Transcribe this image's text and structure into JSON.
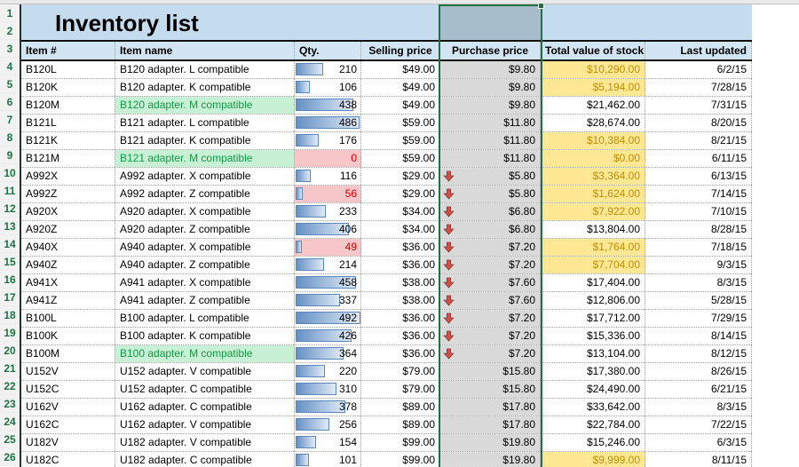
{
  "sheet": {
    "title": "Inventory list",
    "selected_column": "Purchase price",
    "qty_bar_max": 500,
    "columns": [
      {
        "key": "item",
        "label": "Item #",
        "align": "left"
      },
      {
        "key": "name",
        "label": "Item name",
        "align": "left"
      },
      {
        "key": "qty",
        "label": "Qty.",
        "align": "left"
      },
      {
        "key": "sell",
        "label": "Selling price",
        "align": "center"
      },
      {
        "key": "buy",
        "label": "Purchase price",
        "align": "center"
      },
      {
        "key": "total",
        "label": "Total value of stock",
        "align": "center"
      },
      {
        "key": "updated",
        "label": "Last updated",
        "align": "right"
      }
    ],
    "row_numbers": [
      1,
      2,
      3,
      4,
      5,
      6,
      7,
      8,
      9,
      10,
      11,
      12,
      13,
      14,
      15,
      16,
      17,
      18,
      19,
      20,
      21,
      22,
      23,
      24,
      25,
      26
    ],
    "rows": [
      {
        "item": "B120L",
        "name": "B120 adapter. L compatible",
        "qty": 210,
        "sell": "$49.00",
        "buy": "$9.80",
        "buy_arrow": false,
        "total": "$10,290.00",
        "total_highlight": true,
        "updated": "6/2/15",
        "name_good": false,
        "qty_low": false
      },
      {
        "item": "B120K",
        "name": "B120 adapter. K compatible",
        "qty": 106,
        "sell": "$49.00",
        "buy": "$9.80",
        "buy_arrow": false,
        "total": "$5,194.00",
        "total_highlight": true,
        "updated": "7/28/15",
        "name_good": false,
        "qty_low": false
      },
      {
        "item": "B120M",
        "name": "B120 adapter. M compatible",
        "qty": 438,
        "sell": "$49.00",
        "buy": "$9.80",
        "buy_arrow": false,
        "total": "$21,462.00",
        "total_highlight": false,
        "updated": "7/31/15",
        "name_good": true,
        "qty_low": false
      },
      {
        "item": "B121L",
        "name": "B121 adapter. L compatible",
        "qty": 486,
        "sell": "$59.00",
        "buy": "$11.80",
        "buy_arrow": false,
        "total": "$28,674.00",
        "total_highlight": false,
        "updated": "8/20/15",
        "name_good": false,
        "qty_low": false
      },
      {
        "item": "B121K",
        "name": "B121 adapter. K compatible",
        "qty": 176,
        "sell": "$59.00",
        "buy": "$11.80",
        "buy_arrow": false,
        "total": "$10,384.00",
        "total_highlight": true,
        "updated": "8/21/15",
        "name_good": false,
        "qty_low": false
      },
      {
        "item": "B121M",
        "name": "B121 adapter. M compatible",
        "qty": 0,
        "sell": "$59.00",
        "buy": "$11.80",
        "buy_arrow": false,
        "total": "$0.00",
        "total_highlight": true,
        "updated": "6/11/15",
        "name_good": true,
        "qty_low": true
      },
      {
        "item": "A992X",
        "name": "A992 adapter. X compatible",
        "qty": 116,
        "sell": "$29.00",
        "buy": "$5.80",
        "buy_arrow": true,
        "total": "$3,364.00",
        "total_highlight": true,
        "updated": "6/13/15",
        "name_good": false,
        "qty_low": false
      },
      {
        "item": "A992Z",
        "name": "A992 adapter. Z compatible",
        "qty": 56,
        "sell": "$29.00",
        "buy": "$5.80",
        "buy_arrow": true,
        "total": "$1,624.00",
        "total_highlight": true,
        "updated": "7/14/15",
        "name_good": false,
        "qty_low": true
      },
      {
        "item": "A920X",
        "name": "A920 adapter. X compatible",
        "qty": 233,
        "sell": "$34.00",
        "buy": "$6.80",
        "buy_arrow": true,
        "total": "$7,922.00",
        "total_highlight": true,
        "updated": "7/10/15",
        "name_good": false,
        "qty_low": false
      },
      {
        "item": "A920Z",
        "name": "A920 adapter. Z compatible",
        "qty": 406,
        "sell": "$34.00",
        "buy": "$6.80",
        "buy_arrow": true,
        "total": "$13,804.00",
        "total_highlight": false,
        "updated": "8/28/15",
        "name_good": false,
        "qty_low": false
      },
      {
        "item": "A940X",
        "name": "A940 adapter. X compatible",
        "qty": 49,
        "sell": "$36.00",
        "buy": "$7.20",
        "buy_arrow": true,
        "total": "$1,764.00",
        "total_highlight": true,
        "updated": "7/18/15",
        "name_good": false,
        "qty_low": true
      },
      {
        "item": "A940Z",
        "name": "A940 adapter. Z compatible",
        "qty": 214,
        "sell": "$36.00",
        "buy": "$7.20",
        "buy_arrow": true,
        "total": "$7,704.00",
        "total_highlight": true,
        "updated": "9/3/15",
        "name_good": false,
        "qty_low": false
      },
      {
        "item": "A941X",
        "name": "A941 adapter. X compatible",
        "qty": 458,
        "sell": "$38.00",
        "buy": "$7.60",
        "buy_arrow": true,
        "total": "$17,404.00",
        "total_highlight": false,
        "updated": "8/3/15",
        "name_good": false,
        "qty_low": false
      },
      {
        "item": "A941Z",
        "name": "A941 adapter. Z compatible",
        "qty": 337,
        "sell": "$38.00",
        "buy": "$7.60",
        "buy_arrow": true,
        "total": "$12,806.00",
        "total_highlight": false,
        "updated": "5/28/15",
        "name_good": false,
        "qty_low": false
      },
      {
        "item": "B100L",
        "name": "B100 adapter. L compatible",
        "qty": 492,
        "sell": "$36.00",
        "buy": "$7.20",
        "buy_arrow": true,
        "total": "$17,712.00",
        "total_highlight": false,
        "updated": "7/29/15",
        "name_good": false,
        "qty_low": false
      },
      {
        "item": "B100K",
        "name": "B100 adapter. K compatible",
        "qty": 426,
        "sell": "$36.00",
        "buy": "$7.20",
        "buy_arrow": true,
        "total": "$15,336.00",
        "total_highlight": false,
        "updated": "8/14/15",
        "name_good": false,
        "qty_low": false
      },
      {
        "item": "B100M",
        "name": "B100 adapter. M compatible",
        "qty": 364,
        "sell": "$36.00",
        "buy": "$7.20",
        "buy_arrow": true,
        "total": "$13,104.00",
        "total_highlight": false,
        "updated": "8/12/15",
        "name_good": true,
        "qty_low": false
      },
      {
        "item": "U152V",
        "name": "U152 adapter. V compatible",
        "qty": 220,
        "sell": "$79.00",
        "buy": "$15.80",
        "buy_arrow": false,
        "total": "$17,380.00",
        "total_highlight": false,
        "updated": "8/26/15",
        "name_good": false,
        "qty_low": false
      },
      {
        "item": "U152C",
        "name": "U152 adapter. C compatible",
        "qty": 310,
        "sell": "$79.00",
        "buy": "$15.80",
        "buy_arrow": false,
        "total": "$24,490.00",
        "total_highlight": false,
        "updated": "6/21/15",
        "name_good": false,
        "qty_low": false
      },
      {
        "item": "U162V",
        "name": "U162 adapter. C compatible",
        "qty": 378,
        "sell": "$89.00",
        "buy": "$17.80",
        "buy_arrow": false,
        "total": "$33,642.00",
        "total_highlight": false,
        "updated": "8/3/15",
        "name_good": false,
        "qty_low": false
      },
      {
        "item": "U162C",
        "name": "U162 adapter. V compatible",
        "qty": 256,
        "sell": "$89.00",
        "buy": "$17.80",
        "buy_arrow": false,
        "total": "$22,784.00",
        "total_highlight": false,
        "updated": "7/22/15",
        "name_good": false,
        "qty_low": false
      },
      {
        "item": "U182V",
        "name": "U182 adapter. V compatible",
        "qty": 154,
        "sell": "$99.00",
        "buy": "$19.80",
        "buy_arrow": false,
        "total": "$15,246.00",
        "total_highlight": false,
        "updated": "6/3/15",
        "name_good": false,
        "qty_low": false
      },
      {
        "item": "U182C",
        "name": "U182 adapter. C compatible",
        "qty": 101,
        "sell": "$99.00",
        "buy": "$19.80",
        "buy_arrow": false,
        "total": "$9,999.00",
        "total_highlight": true,
        "updated": "8/11/15",
        "name_good": false,
        "qty_low": false
      }
    ],
    "colors": {
      "title_band": "#c5dcee",
      "header_band": "#d2e5f3",
      "selection_green": "#1e7145",
      "row_number_green": "#1e7145",
      "good_bg": "#c8f0d4",
      "good_text": "#119a48",
      "low_stock_bg": "#f7c6c9",
      "low_stock_text": "#cc0000",
      "total_warn_bg": "#ffe794",
      "total_warn_text": "#bf8f00",
      "purchase_bg": "#dbdbdb",
      "bar_start": "#6590c4",
      "bar_end": "#e0eaf5",
      "arrow_red": "#c8524e"
    }
  }
}
